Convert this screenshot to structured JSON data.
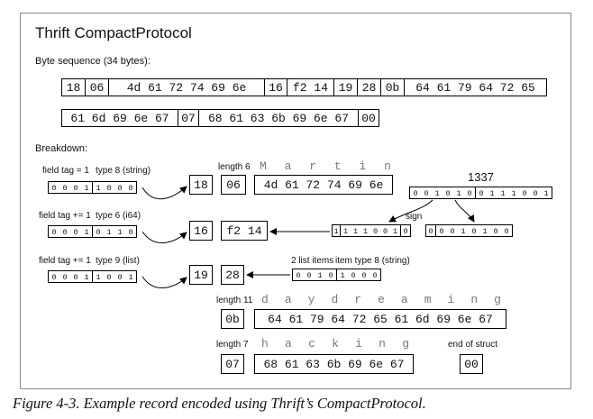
{
  "title": "Thrift CompactProtocol",
  "byte_sequence_label": "Byte sequence (34 bytes):",
  "row1": [
    "18",
    "06",
    "4d 61 72 74 69 6e",
    "16",
    "f2 14",
    "19",
    "28",
    "0b",
    "64 61 79 64 72 65"
  ],
  "row2": [
    "61 6d 69 6e 67",
    "07",
    "68 61 63 6b 69 6e 67",
    "00"
  ],
  "breakdown_label": "Breakdown:",
  "f1": {
    "tag": "field tag = 1",
    "type": "type 8 (string)",
    "bits": [
      "0",
      "0",
      "0",
      "1",
      "1",
      "0",
      "0",
      "0"
    ],
    "byte": "18",
    "len_label": "length 6",
    "len": "06",
    "value": "4d 61 72 74 69 6e",
    "letters": [
      "M",
      "a",
      "r",
      "t",
      "i",
      "n"
    ]
  },
  "f2": {
    "tag": "field tag += 1",
    "type": "type 6 (i64)",
    "bits": [
      "0",
      "0",
      "0",
      "1",
      "0",
      "1",
      "1",
      "0"
    ],
    "byte": "16",
    "value": "f2 14",
    "number": "1337",
    "num_bits": [
      "0",
      "0",
      "1",
      "0",
      "1",
      "0",
      "0",
      "1",
      "1",
      "1",
      "0",
      "0",
      "1"
    ],
    "sign": "sign",
    "b1": [
      "1",
      "1",
      "1",
      "1",
      "0",
      "0",
      "1",
      "0"
    ],
    "b2": [
      "0",
      "0",
      "0",
      "1",
      "0",
      "1",
      "0",
      "0"
    ]
  },
  "f3": {
    "tag": "field tag += 1",
    "type": "type 9 (list)",
    "bits": [
      "0",
      "0",
      "0",
      "1",
      "1",
      "0",
      "0",
      "1"
    ],
    "byte": "19",
    "list_byte": "28",
    "items_label": "2 list items",
    "item_type": "item type 8 (string)",
    "list_bits": [
      "0",
      "0",
      "1",
      "0",
      "1",
      "0",
      "0",
      "0"
    ]
  },
  "item1": {
    "len_label": "length 11",
    "len": "0b",
    "value": "64 61 79 64 72 65 61 6d 69 6e 67",
    "letters": [
      "d",
      "a",
      "y",
      "d",
      "r",
      "e",
      "a",
      "m",
      "i",
      "n",
      "g"
    ]
  },
  "item2": {
    "len_label": "length 7",
    "len": "07",
    "value": "68 61 63 6b 69 6e 67",
    "letters": [
      "h",
      "a",
      "c",
      "k",
      "i",
      "n",
      "g"
    ]
  },
  "end": {
    "label": "end of struct",
    "byte": "00"
  },
  "caption": "Figure 4-3. Example record encoded using Thrift’s CompactProtocol."
}
